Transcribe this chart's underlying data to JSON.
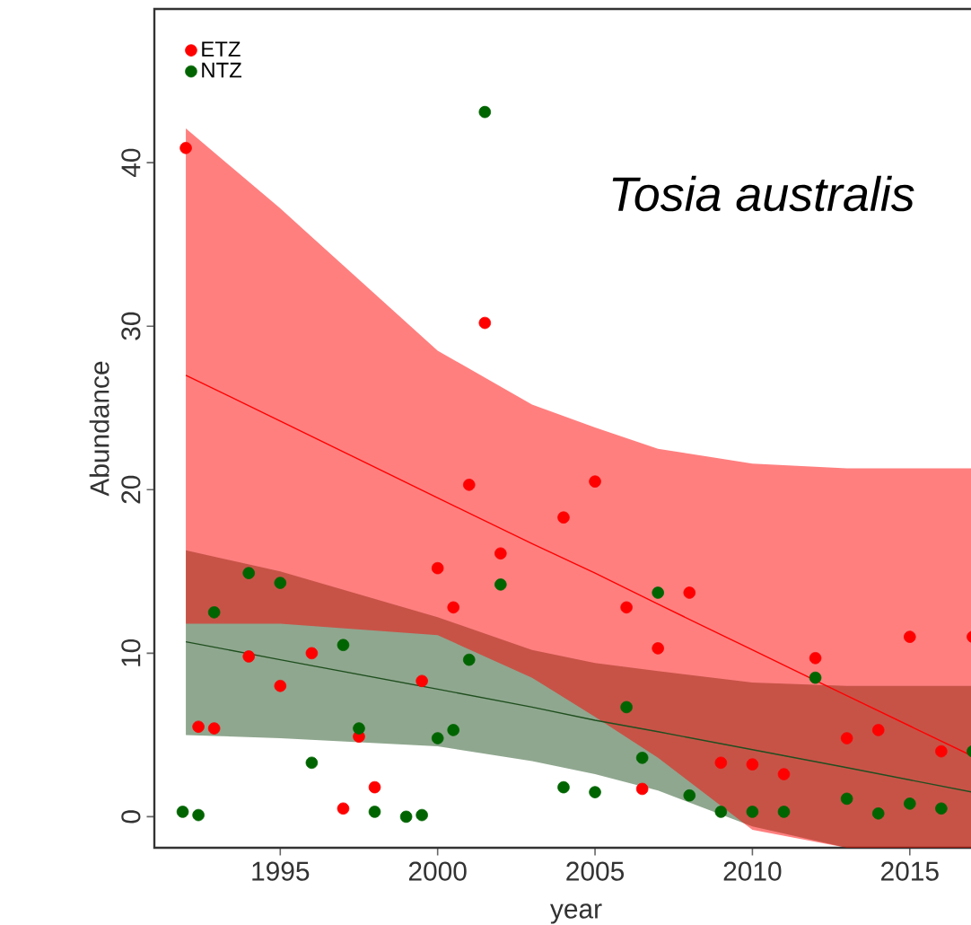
{
  "chart_data": {
    "type": "scatter",
    "xlabel": "year",
    "ylabel": "Abundance",
    "annotations": [
      "Tosia australis"
    ],
    "xlim": [
      1991,
      2017.8
    ],
    "ylim": [
      -1.9,
      49.4
    ],
    "xticks": [
      1995,
      2000,
      2005,
      2010,
      2015
    ],
    "yticks": [
      0,
      10,
      20,
      30,
      40
    ],
    "grid": false,
    "legend": "top left",
    "series": [
      {
        "type": "line",
        "marker": "none",
        "color": "#1f4f1f",
        "x": [
          1992,
          1995,
          2000,
          2003,
          2005,
          2007,
          2010,
          2013,
          2017
        ],
        "values": [
          10.7,
          9.6,
          7.8,
          6.7,
          5.9,
          5.2,
          4.1,
          3.0,
          1.5
        ],
        "lower": [
          5.0,
          4.8,
          4.3,
          3.4,
          2.6,
          1.6,
          -0.6,
          -1.9,
          -1.9
        ],
        "upper": [
          16.3,
          15.0,
          12.2,
          10.2,
          9.4,
          8.9,
          8.2,
          8.0,
          8.0
        ]
      },
      {
        "type": "line",
        "marker": "none",
        "color": "#ff0000",
        "x": [
          1992,
          1995,
          2000,
          2003,
          2005,
          2007,
          2010,
          2013,
          2017
        ],
        "values": [
          27.0,
          24.2,
          19.5,
          16.7,
          14.9,
          13.0,
          10.2,
          7.4,
          3.7
        ],
        "lower": [
          11.8,
          11.8,
          11.1,
          8.5,
          6.1,
          3.6,
          -0.8,
          -1.9,
          -1.9
        ],
        "upper": [
          42.1,
          37.2,
          28.5,
          25.2,
          23.8,
          22.5,
          21.6,
          21.3,
          21.3
        ]
      },
      {
        "name": "ETZ",
        "marker": "circle",
        "color": "#ff0000",
        "x": [
          1992,
          1992.4,
          1992.9,
          1994,
          1995,
          1996,
          1997,
          1997.5,
          1998,
          1999.5,
          2000,
          2000.5,
          2001,
          2001.5,
          2002,
          2004,
          2005,
          2006,
          2006.5,
          2007,
          2008,
          2009,
          2010,
          2011,
          2012,
          2013,
          2014,
          2015,
          2016,
          2017
        ],
        "values": [
          40.9,
          5.5,
          5.4,
          9.8,
          8.0,
          10.0,
          0.5,
          4.9,
          1.8,
          8.3,
          15.2,
          12.8,
          20.3,
          30.2,
          16.1,
          18.3,
          20.5,
          12.8,
          1.7,
          10.3,
          13.7,
          3.3,
          3.2,
          2.6,
          9.7,
          4.8,
          5.3,
          11.0,
          4.0,
          11.0
        ]
      },
      {
        "name": "NTZ",
        "marker": "circle",
        "color": "#006400",
        "x": [
          1991.9,
          1992.4,
          1992.9,
          1994,
          1995,
          1996,
          1997,
          1997.5,
          1998,
          1999,
          1999.5,
          2000,
          2000.5,
          2001,
          2001.5,
          2002,
          2004,
          2005,
          2006,
          2006.5,
          2007,
          2008,
          2009,
          2010,
          2011,
          2012,
          2013,
          2014,
          2015,
          2016,
          2017
        ],
        "values": [
          0.3,
          0.1,
          12.5,
          14.9,
          14.3,
          3.3,
          10.5,
          5.4,
          0.3,
          0.0,
          0.1,
          4.8,
          5.3,
          9.6,
          43.1,
          14.2,
          1.8,
          1.5,
          6.7,
          3.6,
          13.7,
          1.3,
          0.3,
          0.3,
          0.3,
          8.5,
          1.1,
          0.2,
          0.8,
          0.5,
          4.0
        ]
      }
    ]
  }
}
